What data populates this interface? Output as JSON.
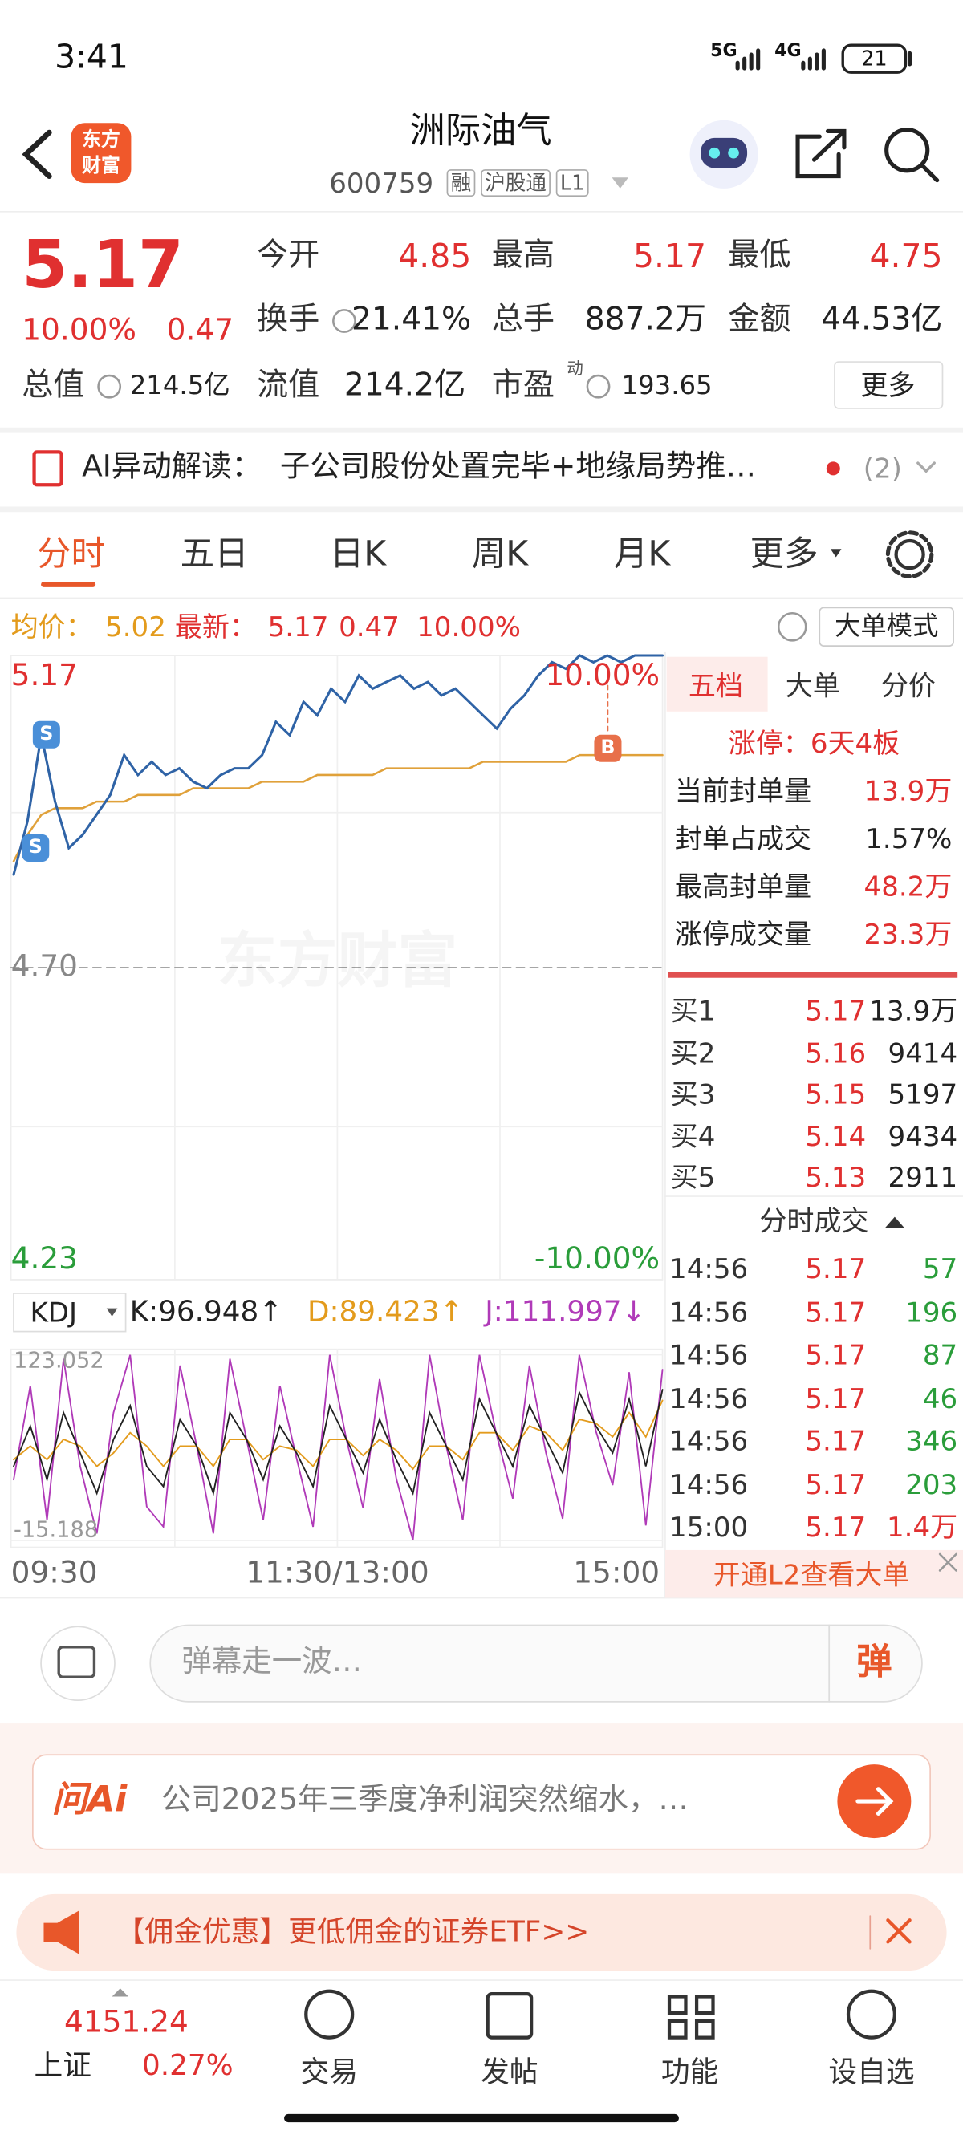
{
  "status_bar": {
    "time": "3:41",
    "network": [
      "5G",
      "4G"
    ],
    "battery": "21"
  },
  "header": {
    "logo": [
      "东方",
      "财富"
    ],
    "title": "洲际油气",
    "code": "600759",
    "tags": [
      "融",
      "沪股通",
      "L1"
    ]
  },
  "quote": {
    "price": "5.17",
    "change_pct": "10.00%",
    "change": "0.47",
    "fields": [
      {
        "label": "今开",
        "value": "4.85"
      },
      {
        "label": "最高",
        "value": "5.17"
      },
      {
        "label": "最低",
        "value": "4.75"
      },
      {
        "label": "换手",
        "value": "21.41%"
      },
      {
        "label": "总手",
        "value": "887.2万"
      },
      {
        "label": "金额",
        "value": "44.53亿"
      },
      {
        "label": "总值",
        "value": "214.5亿"
      },
      {
        "label": "流值",
        "value": "214.2亿"
      },
      {
        "label": "市盈",
        "sup": "动",
        "value": "193.65"
      }
    ],
    "more": "更多"
  },
  "ai_banner": {
    "label": "AI异动解读：",
    "text": "子公司股份处置完毕+地缘局势推…",
    "count": "(2)"
  },
  "tabs": [
    "分时",
    "五日",
    "日K",
    "周K",
    "月K",
    "更多"
  ],
  "info_bar": {
    "avg_label": "均价：",
    "avg": "5.02",
    "latest_label": "最新：",
    "latest": "5.17",
    "change": "0.47",
    "change_pct": "10.00%",
    "mode": "大单模式"
  },
  "intraday": {
    "ylim": [
      4.23,
      5.17
    ],
    "yticks": [
      5.17,
      {
        "value": 4.7,
        "label": "4.70"
      },
      4.23
    ],
    "pct_labels": [
      "10.00%",
      "-10.00%"
    ],
    "watermark": "东方财富",
    "markers": [
      "S",
      "S",
      "B"
    ],
    "price_color": "#2f63a6",
    "avg_color": "#e0a13a",
    "price": [
      4.84,
      4.92,
      5.05,
      4.95,
      4.88,
      4.9,
      4.93,
      4.96,
      5.02,
      4.99,
      5.01,
      4.99,
      5.0,
      4.98,
      4.97,
      4.99,
      5.0,
      5.0,
      5.02,
      5.07,
      5.05,
      5.1,
      5.08,
      5.12,
      5.1,
      5.14,
      5.12,
      5.13,
      5.14,
      5.12,
      5.13,
      5.11,
      5.12,
      5.1,
      5.08,
      5.06,
      5.09,
      5.11,
      5.14,
      5.16,
      5.15,
      5.17,
      5.16,
      5.17,
      5.16,
      5.17,
      5.17,
      5.17
    ],
    "avg": [
      4.86,
      4.9,
      4.93,
      4.94,
      4.94,
      4.94,
      4.95,
      4.95,
      4.95,
      4.96,
      4.96,
      4.96,
      4.96,
      4.97,
      4.97,
      4.97,
      4.97,
      4.97,
      4.98,
      4.98,
      4.98,
      4.98,
      4.99,
      4.99,
      4.99,
      4.99,
      4.99,
      5.0,
      5.0,
      5.0,
      5.0,
      5.0,
      5.0,
      5.0,
      5.01,
      5.01,
      5.01,
      5.01,
      5.01,
      5.01,
      5.01,
      5.02,
      5.02,
      5.02,
      5.02,
      5.02,
      5.02,
      5.02
    ],
    "xticks": [
      "09:30",
      "11:30/13:00",
      "15:00"
    ]
  },
  "kdj": {
    "name": "KDJ",
    "legend": [
      "K:96.948↑",
      "D:89.423↑",
      "J:111.997↓"
    ],
    "legend_colors": [
      "#222222",
      "#e39b1c",
      "#b03ab8"
    ],
    "ylim": [
      -15.188,
      123.052
    ],
    "yticks": [
      123.052,
      -15.188
    ],
    "series": [
      {
        "color": "#b03ab8",
        "values": [
          30,
          100,
          0,
          120,
          40,
          -10,
          80,
          123,
          10,
          -5,
          115,
          55,
          -10,
          120,
          60,
          0,
          100,
          46,
          -5,
          123,
          60,
          9,
          105,
          31,
          -15,
          123,
          55,
          0,
          123,
          65,
          16,
          115,
          50,
          1,
          123,
          66,
          26,
          110,
          -4,
          112
        ]
      },
      {
        "color": "#e39b1c",
        "values": [
          45,
          55,
          45,
          60,
          55,
          40,
          50,
          65,
          55,
          40,
          55,
          55,
          40,
          60,
          60,
          45,
          55,
          52,
          40,
          60,
          60,
          48,
          60,
          52,
          38,
          55,
          55,
          45,
          65,
          65,
          52,
          70,
          65,
          52,
          75,
          72,
          62,
          80,
          62,
          89
        ]
      },
      {
        "color": "#222222",
        "values": [
          40,
          70,
          30,
          80,
          50,
          20,
          60,
          85,
          40,
          25,
          75,
          55,
          20,
          80,
          60,
          30,
          70,
          50,
          25,
          85,
          60,
          35,
          75,
          45,
          20,
          80,
          55,
          30,
          90,
          65,
          40,
          85,
          60,
          35,
          95,
          70,
          50,
          90,
          40,
          97
        ]
      }
    ]
  },
  "order_book": {
    "tabs": [
      "五档",
      "大单",
      "分价"
    ],
    "limit_up": "涨停：6天4板",
    "stats": [
      [
        "当前封单量",
        "13.9万"
      ],
      [
        "封单占成交",
        "1.57%"
      ],
      [
        "最高封单量",
        "48.2万"
      ],
      [
        "涨停成交量",
        "23.3万"
      ]
    ],
    "bids": [
      [
        "买1",
        "5.17",
        "13.9万"
      ],
      [
        "买2",
        "5.16",
        "9414"
      ],
      [
        "买3",
        "5.15",
        "5197"
      ],
      [
        "买4",
        "5.14",
        "9434"
      ],
      [
        "买5",
        "5.13",
        "2911"
      ]
    ],
    "trades_title": "分时成交",
    "trades": [
      {
        "time": "14:56",
        "price": "5.17",
        "volume": "57",
        "color": "#2a9d3a"
      },
      {
        "time": "14:56",
        "price": "5.17",
        "volume": "196",
        "color": "#2a9d3a"
      },
      {
        "time": "14:56",
        "price": "5.17",
        "volume": "87",
        "color": "#2a9d3a"
      },
      {
        "time": "14:56",
        "price": "5.17",
        "volume": "46",
        "color": "#2a9d3a"
      },
      {
        "time": "14:56",
        "price": "5.17",
        "volume": "346",
        "color": "#2a9d3a"
      },
      {
        "time": "14:56",
        "price": "5.17",
        "volume": "203",
        "color": "#2a9d3a"
      },
      {
        "time": "15:00",
        "price": "5.17",
        "volume": "1.4万",
        "color": "#e03030"
      }
    ],
    "l2": "开通L2查看大单"
  },
  "comment": {
    "placeholder": "弹幕走一波…",
    "button": "弹"
  },
  "ask_ai": {
    "logo": "问Ai",
    "text": "公司2025年三季度净利润突然缩水，…"
  },
  "promo": {
    "text": "【佣金优惠】更低佣金的证券ETF>>"
  },
  "nav": {
    "index_value": "4151.24",
    "index_name": "上证",
    "index_pct": "0.27%",
    "items": [
      "交易",
      "发帖",
      "功能",
      "设自选"
    ]
  }
}
